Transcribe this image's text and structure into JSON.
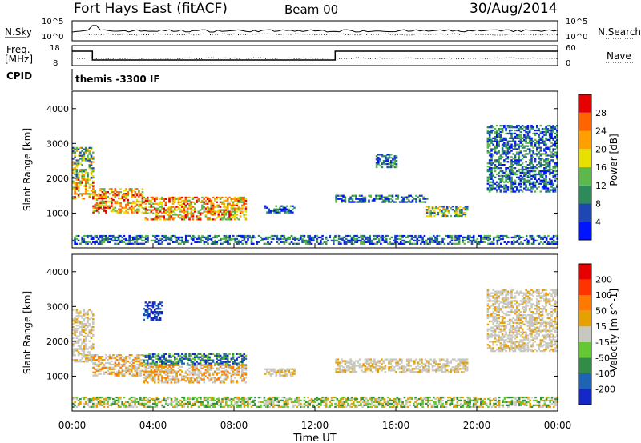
{
  "header": {
    "station": "Fort Hays East (fitACF)",
    "beam": "Beam 00",
    "date": "30/Aug/2014"
  },
  "top_panels": {
    "nsky_label": "N.Sky",
    "nsearch_label": "N.Search",
    "freq_label_line1": "Freq.",
    "freq_label_line2": "[MHz]",
    "nave_label": "Nave",
    "cpid_label": "CPID",
    "cpid_value": "themis -3300 IF",
    "noise_ticks": [
      "10^5",
      "10^0"
    ],
    "noise_ticks_right": [
      "10^5",
      "10^0"
    ],
    "freq_ticks": [
      "18",
      "8"
    ],
    "nave_ticks": [
      "60",
      "0"
    ]
  },
  "chart_data": [
    {
      "type": "heatmap",
      "name": "power",
      "ylabel": "Slant Range [km]",
      "ylim": [
        0,
        4500
      ],
      "y_ticks": [
        "4000",
        "3000",
        "2000",
        "1000"
      ],
      "xlim": [
        "00:00",
        "24:00"
      ],
      "x_ticks": [
        "00:00",
        "04:00",
        "08:00",
        "12:00",
        "16:00",
        "20:00",
        "00:00"
      ],
      "colorbar_label": "Power [dB]",
      "colorbar_ticks": [
        "28",
        "24",
        "20",
        "16",
        "12",
        "8",
        "4"
      ],
      "colors": [
        "#0014ff",
        "#1e46b4",
        "#2d8a5a",
        "#5cb84a",
        "#e8e000",
        "#ffa000",
        "#ff6400",
        "#e60000"
      ],
      "regions": [
        {
          "t": [
            0.0,
            1.0
          ],
          "range": [
            1400,
            2000
          ],
          "level": "high"
        },
        {
          "t": [
            0.0,
            1.0
          ],
          "range": [
            2000,
            2900
          ],
          "level": "mid"
        },
        {
          "t": [
            1.0,
            3.5
          ],
          "range": [
            1000,
            1700
          ],
          "level": "high"
        },
        {
          "t": [
            3.5,
            8.6
          ],
          "range": [
            800,
            1450
          ],
          "level": "high"
        },
        {
          "t": [
            9.5,
            11.0
          ],
          "range": [
            1000,
            1200
          ],
          "level": "low"
        },
        {
          "t": [
            13.0,
            17.5
          ],
          "range": [
            1300,
            1500
          ],
          "level": "low"
        },
        {
          "t": [
            15.0,
            16.0
          ],
          "range": [
            2300,
            2700
          ],
          "level": "low"
        },
        {
          "t": [
            17.5,
            19.5
          ],
          "range": [
            900,
            1200
          ],
          "level": "mid"
        },
        {
          "t": [
            20.5,
            24.0
          ],
          "range": [
            1600,
            3500
          ],
          "level": "low"
        },
        {
          "t": [
            0.0,
            24.0
          ],
          "range": [
            100,
            350
          ],
          "level": "low"
        }
      ]
    },
    {
      "type": "heatmap",
      "name": "velocity",
      "ylabel": "Slant Range [km]",
      "ylim": [
        0,
        4500
      ],
      "y_ticks": [
        "4000",
        "3000",
        "2000",
        "1000"
      ],
      "xlim": [
        "00:00",
        "24:00"
      ],
      "x_ticks": [
        "00:00",
        "04:00",
        "08:00",
        "12:00",
        "16:00",
        "20:00",
        "00:00"
      ],
      "xlabel": "Time UT",
      "colorbar_label": "Velocity [m s^-1]",
      "colorbar_ticks": [
        "200",
        "100",
        "50",
        "15",
        "-15",
        "-50",
        "-100",
        "-200"
      ],
      "colors": [
        "#1428c8",
        "#1e64b4",
        "#328c46",
        "#64c832",
        "#c8c8c0",
        "#e6a000",
        "#ff7800",
        "#ff3200",
        "#e60000"
      ],
      "regions": [
        {
          "t": [
            0.0,
            1.0
          ],
          "range": [
            1400,
            2900
          ],
          "level": "grey"
        },
        {
          "t": [
            1.0,
            3.5
          ],
          "range": [
            1000,
            1600
          ],
          "level": "orange-grey"
        },
        {
          "t": [
            3.5,
            4.4
          ],
          "range": [
            2600,
            3100
          ],
          "level": "blue"
        },
        {
          "t": [
            3.5,
            8.6
          ],
          "range": [
            1300,
            1650
          ],
          "level": "blue-green"
        },
        {
          "t": [
            3.5,
            8.6
          ],
          "range": [
            800,
            1300
          ],
          "level": "orange-grey"
        },
        {
          "t": [
            9.5,
            11.0
          ],
          "range": [
            1000,
            1200
          ],
          "level": "grey"
        },
        {
          "t": [
            13.0,
            19.5
          ],
          "range": [
            1100,
            1500
          ],
          "level": "grey"
        },
        {
          "t": [
            20.5,
            24.0
          ],
          "range": [
            1700,
            3500
          ],
          "level": "grey"
        },
        {
          "t": [
            0.0,
            24.0
          ],
          "range": [
            100,
            400
          ],
          "level": "green-orange"
        }
      ]
    }
  ]
}
